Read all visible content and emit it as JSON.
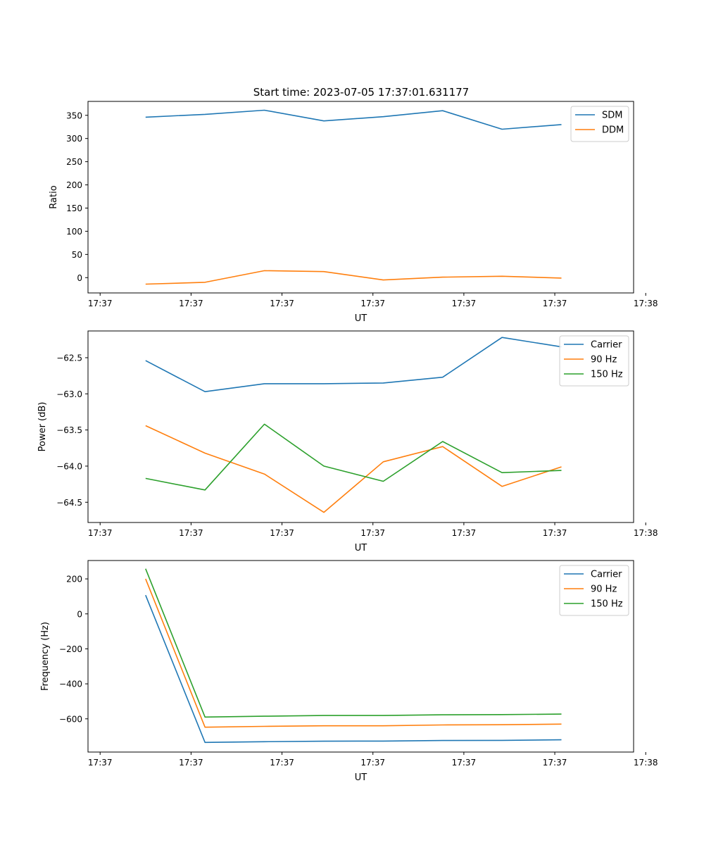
{
  "figure_title": "Start time: 2023-07-05 17:37:01.631177",
  "chart_data": [
    {
      "type": "line",
      "title": "Start time: 2023-07-05 17:37:01.631177",
      "xlabel": "UT",
      "ylabel": "Ratio",
      "xlim": [
        -0.2,
        8.8
      ],
      "ylim": [
        -33,
        380
      ],
      "x_ticks": [
        0,
        1.5,
        3,
        4.5,
        6,
        7.5,
        9
      ],
      "x_tick_labels": [
        "17:37",
        "17:37",
        "17:37",
        "17:37",
        "17:37",
        "17:37",
        "17:38"
      ],
      "y_ticks": [
        0,
        50,
        100,
        150,
        200,
        250,
        300,
        350
      ],
      "y_tick_labels": [
        "0",
        "50",
        "100",
        "150",
        "200",
        "250",
        "300",
        "350"
      ],
      "legend_position": "top-right",
      "x": [
        0.75,
        1.73,
        2.71,
        3.69,
        4.67,
        5.65,
        6.63,
        7.61
      ],
      "series": [
        {
          "name": "SDM",
          "color": "#1f77b4",
          "values": [
            346,
            352,
            361,
            338,
            347,
            360,
            320,
            330
          ]
        },
        {
          "name": "DDM",
          "color": "#ff7f0e",
          "values": [
            -14,
            -10,
            15,
            13,
            -5,
            1,
            3,
            -1
          ]
        }
      ]
    },
    {
      "type": "line",
      "title": "",
      "xlabel": "UT",
      "ylabel": "Power (dB)",
      "xlim": [
        -0.2,
        8.8
      ],
      "ylim": [
        -64.78,
        -62.13
      ],
      "x_ticks": [
        0,
        1.5,
        3,
        4.5,
        6,
        7.5,
        9
      ],
      "x_tick_labels": [
        "17:37",
        "17:37",
        "17:37",
        "17:37",
        "17:37",
        "17:37",
        "17:38"
      ],
      "y_ticks": [
        -62.5,
        -63.0,
        -63.5,
        -64.0,
        -64.5
      ],
      "y_tick_labels": [
        "−62.5",
        "−63.0",
        "−63.5",
        "−64.0",
        "−64.5"
      ],
      "legend_position": "top-right",
      "x": [
        0.75,
        1.73,
        2.71,
        3.69,
        4.67,
        5.65,
        6.63,
        7.61
      ],
      "series": [
        {
          "name": "Carrier",
          "color": "#1f77b4",
          "values": [
            -62.54,
            -62.97,
            -62.86,
            -62.86,
            -62.85,
            -62.77,
            -62.22,
            -62.35
          ]
        },
        {
          "name": "90 Hz",
          "color": "#ff7f0e",
          "values": [
            -63.44,
            -63.82,
            -64.11,
            -64.64,
            -63.94,
            -63.73,
            -64.28,
            -64.01
          ]
        },
        {
          "name": "150 Hz",
          "color": "#2ca02c",
          "values": [
            -64.17,
            -64.33,
            -63.42,
            -64.0,
            -64.21,
            -63.66,
            -64.09,
            -64.06
          ]
        }
      ]
    },
    {
      "type": "line",
      "title": "",
      "xlabel": "UT",
      "ylabel": "Frequency (Hz)",
      "xlim": [
        -0.2,
        8.8
      ],
      "ylim": [
        -790,
        305
      ],
      "x_ticks": [
        0,
        1.5,
        3,
        4.5,
        6,
        7.5,
        9
      ],
      "x_tick_labels": [
        "17:37",
        "17:37",
        "17:37",
        "17:37",
        "17:37",
        "17:37",
        "17:38"
      ],
      "y_ticks": [
        200,
        0,
        -200,
        -400,
        -600
      ],
      "y_tick_labels": [
        "200",
        "0",
        "−200",
        "−400",
        "−600"
      ],
      "legend_position": "top-right",
      "x": [
        0.75,
        1.73,
        2.71,
        3.69,
        4.67,
        5.65,
        6.63,
        7.61
      ],
      "series": [
        {
          "name": "Carrier",
          "color": "#1f77b4",
          "values": [
            107,
            -735,
            -731,
            -728,
            -727,
            -724,
            -723,
            -720
          ]
        },
        {
          "name": "90 Hz",
          "color": "#ff7f0e",
          "values": [
            200,
            -648,
            -643,
            -640,
            -640,
            -635,
            -634,
            -630
          ]
        },
        {
          "name": "150 Hz",
          "color": "#2ca02c",
          "values": [
            258,
            -590,
            -585,
            -581,
            -581,
            -577,
            -576,
            -573
          ]
        }
      ]
    }
  ]
}
